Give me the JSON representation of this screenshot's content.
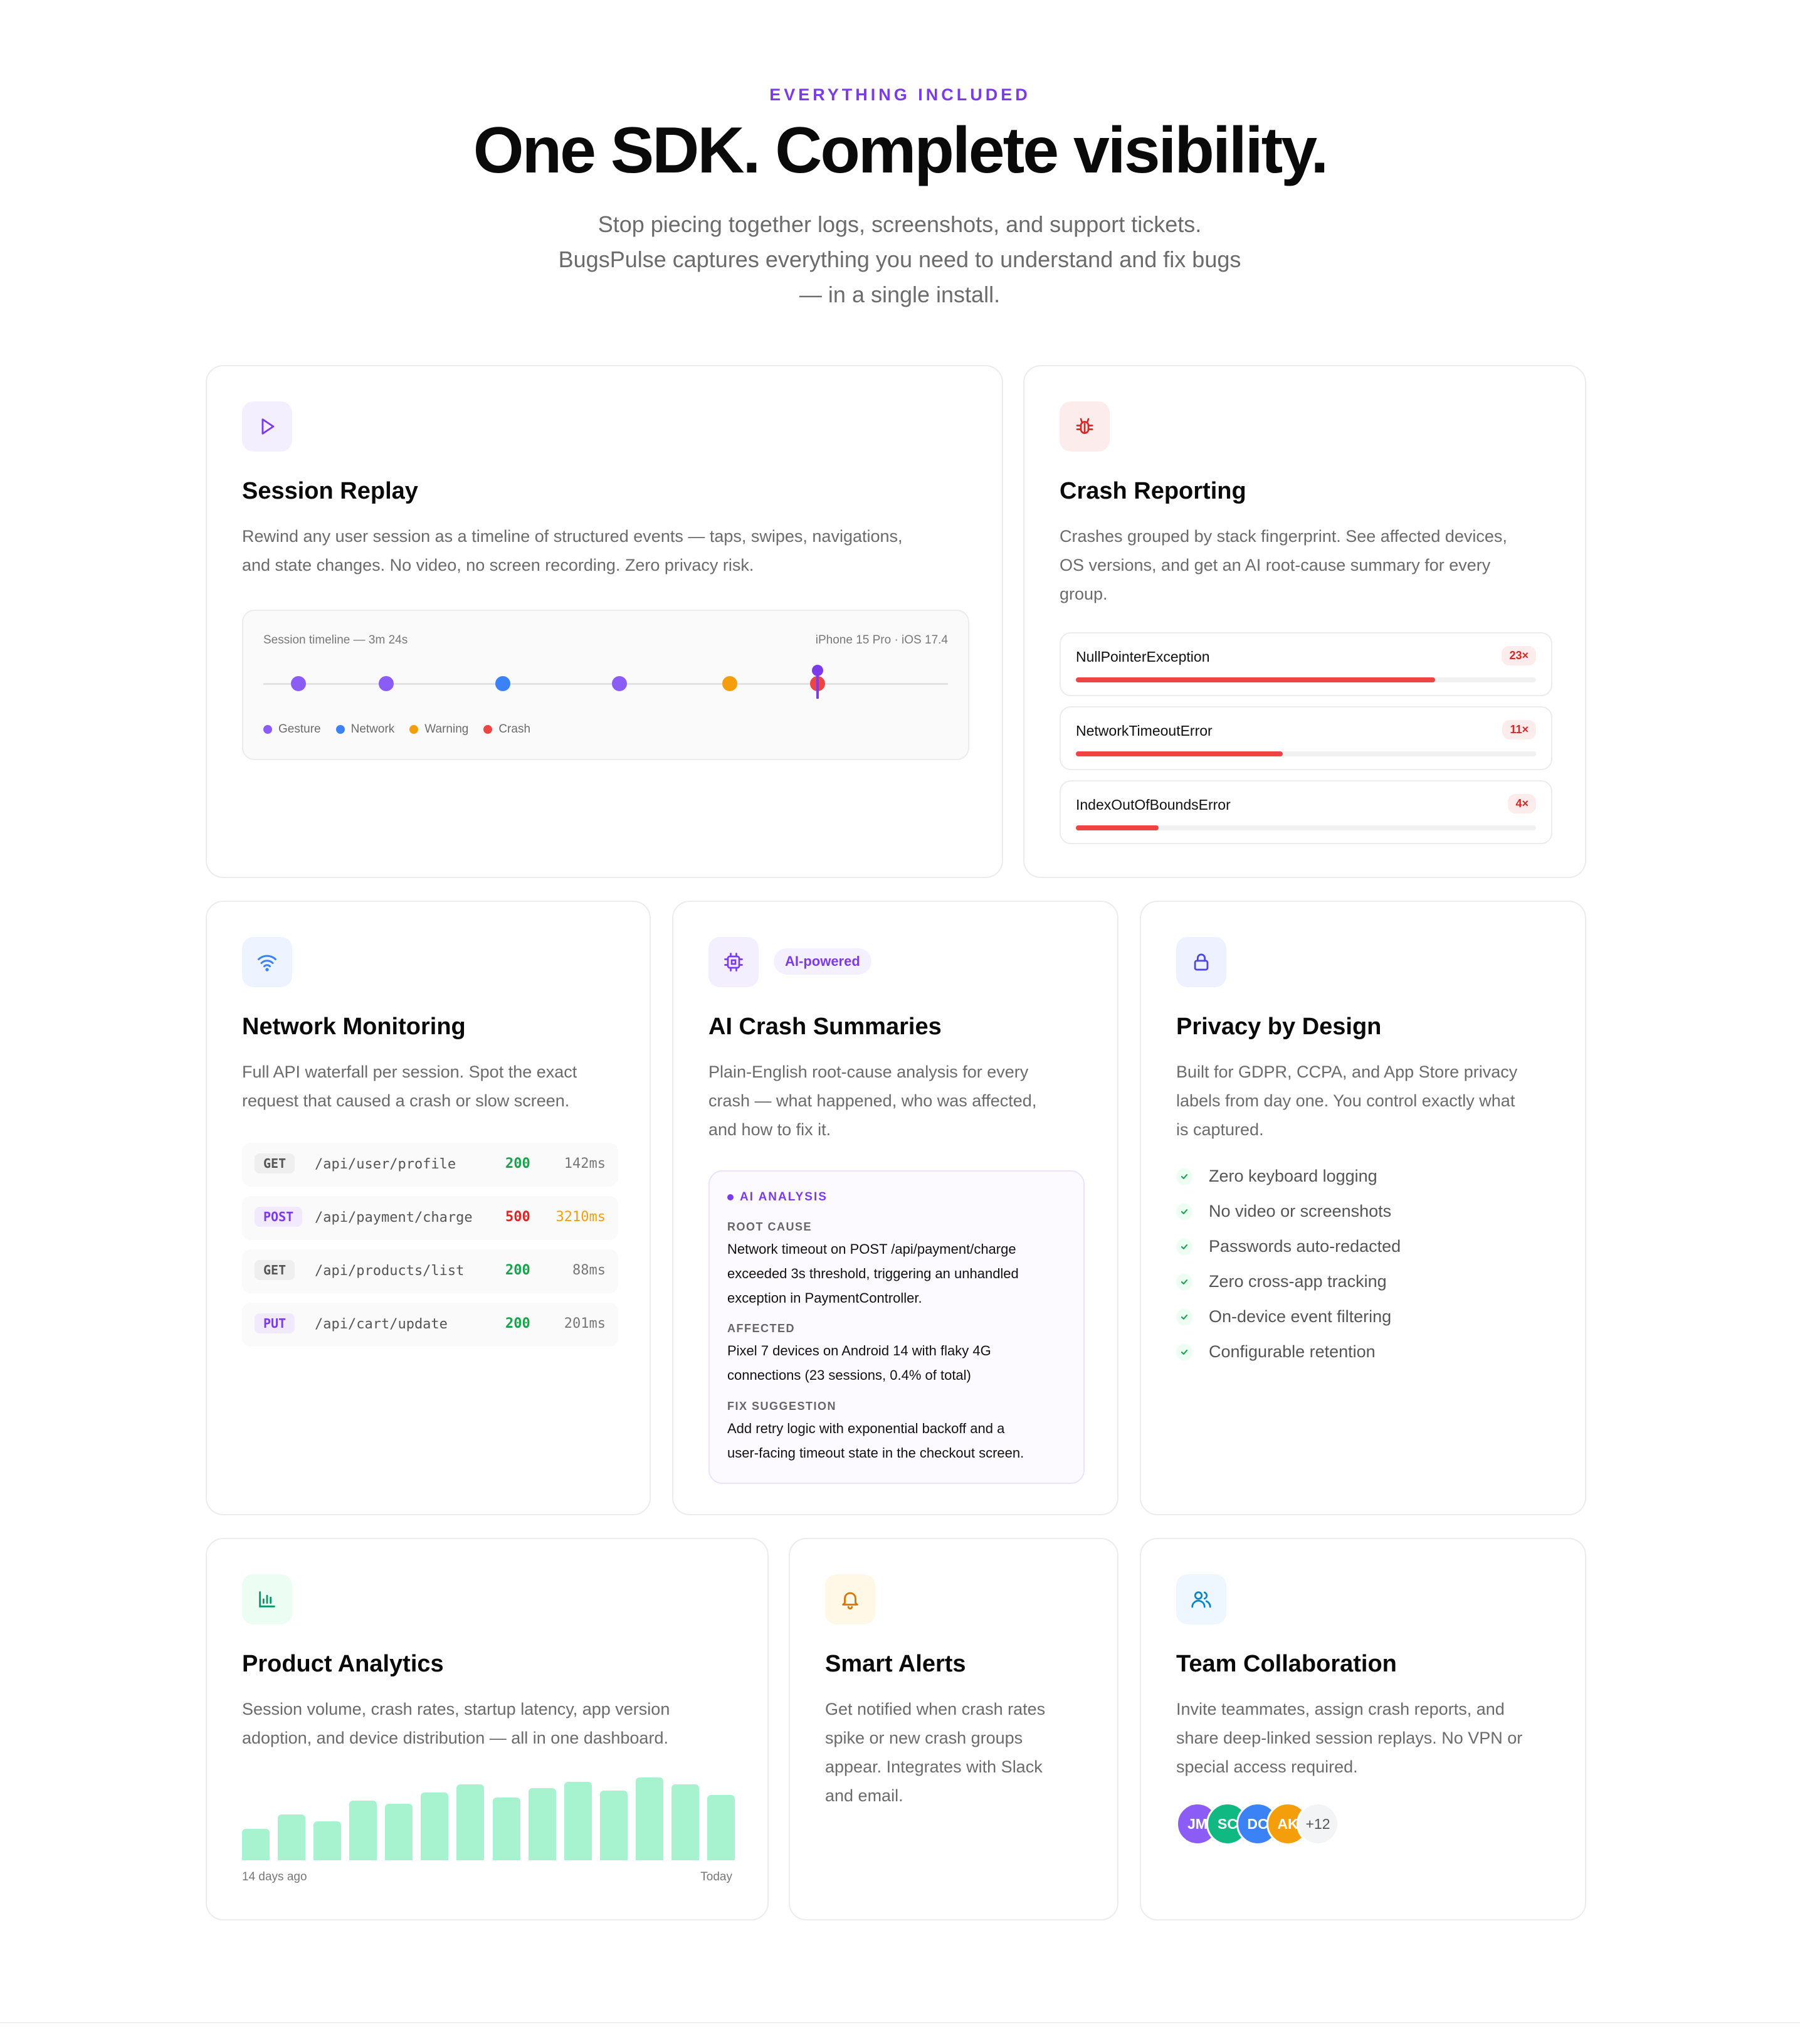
{
  "header": {
    "eyebrow": "EVERYTHING INCLUDED",
    "title": "One SDK. Complete visibility.",
    "subtitle_lines": [
      "Stop piecing together logs, screenshots, and support tickets.",
      "BugsPulse captures everything you need to understand and fix bugs",
      "— in a single install."
    ]
  },
  "colors": {
    "accent": "#7c3aed",
    "gesture": "#8b5cf6",
    "network": "#3b82f6",
    "warning": "#f59e0b",
    "crash": "#ef4444",
    "success": "#16a34a"
  },
  "session_replay": {
    "icon": "play-icon",
    "title": "Session Replay",
    "desc_lines": [
      "Rewind any user session as a timeline of structured events — taps, swipes, navigations,",
      "and state changes. No video, no screen recording. Zero privacy risk."
    ],
    "timeline_label": "Session timeline — 3m 24s",
    "device_label": "iPhone 15 Pro · iOS 17.4",
    "events": [
      "gesture",
      "gesture",
      "network",
      "gesture",
      "warning",
      "crash"
    ],
    "legend": [
      {
        "label": "Gesture",
        "type": "gesture"
      },
      {
        "label": "Network",
        "type": "network"
      },
      {
        "label": "Warning",
        "type": "warning"
      },
      {
        "label": "Crash",
        "type": "crash"
      }
    ]
  },
  "crash_reporting": {
    "icon": "bug-icon",
    "title": "Crash Reporting",
    "desc_lines": [
      "Crashes grouped by stack fingerprint. See affected devices,",
      "OS versions, and get an AI root-cause summary for every",
      "group."
    ],
    "groups": [
      {
        "name": "NullPointerException",
        "count": "23×",
        "share": 0.78
      },
      {
        "name": "NetworkTimeoutError",
        "count": "11×",
        "share": 0.45
      },
      {
        "name": "IndexOutOfBoundsError",
        "count": "4×",
        "share": 0.18
      }
    ]
  },
  "network_monitoring": {
    "icon": "wifi-icon",
    "title": "Network Monitoring",
    "desc_lines": [
      "Full API waterfall per session. Spot the exact",
      "request that caused a crash or slow screen."
    ],
    "requests": [
      {
        "method": "GET",
        "path": "/api/user/profile",
        "status": "200",
        "time": "142ms",
        "error": false
      },
      {
        "method": "POST",
        "path": "/api/payment/charge",
        "status": "500",
        "time": "3210ms",
        "error": true
      },
      {
        "method": "GET",
        "path": "/api/products/list",
        "status": "200",
        "time": "88ms",
        "error": false
      },
      {
        "method": "PUT",
        "path": "/api/cart/update",
        "status": "200",
        "time": "201ms",
        "error": false
      }
    ]
  },
  "ai_summaries": {
    "icon": "cpu-icon",
    "badge": "AI-powered",
    "title": "AI Crash Summaries",
    "desc_lines": [
      "Plain-English root-cause analysis for every",
      "crash — what happened, who was affected,",
      "and how to fix it."
    ],
    "analysis": {
      "header": "AI ANALYSIS",
      "root_cause_label": "ROOT CAUSE",
      "root_cause_lines": [
        "Network timeout on POST /api/payment/charge",
        "exceeded 3s threshold, triggering an unhandled",
        "exception in PaymentController."
      ],
      "affected_label": "AFFECTED",
      "affected_lines": [
        "Pixel 7 devices on Android 14 with flaky 4G",
        "connections (23 sessions, 0.4% of total)"
      ],
      "fix_label": "FIX SUGGESTION",
      "fix_lines": [
        "Add retry logic with exponential backoff and a",
        "user-facing timeout state in the checkout screen."
      ]
    }
  },
  "privacy": {
    "icon": "lock-icon",
    "title": "Privacy by Design",
    "desc_lines": [
      "Built for GDPR, CCPA, and App Store privacy",
      "labels from day one. You control exactly what",
      "is captured."
    ],
    "items": [
      "Zero keyboard logging",
      "No video or screenshots",
      "Passwords auto-redacted",
      "Zero cross-app tracking",
      "On-device event filtering",
      "Configurable retention"
    ]
  },
  "analytics": {
    "icon": "bar-chart-icon",
    "title": "Product Analytics",
    "desc_lines": [
      "Session volume, crash rates, startup latency, app version",
      "adoption, and device distribution — all in one dashboard."
    ],
    "range_start": "14 days ago",
    "range_end": "Today"
  },
  "chart_data": {
    "type": "bar",
    "categories": [
      "1",
      "2",
      "3",
      "4",
      "5",
      "6",
      "7",
      "8",
      "9",
      "10",
      "11",
      "12",
      "13",
      "14"
    ],
    "values": [
      0.38,
      0.55,
      0.47,
      0.72,
      0.68,
      0.82,
      0.92,
      0.76,
      0.87,
      0.95,
      0.84,
      1.0,
      0.92,
      0.79
    ],
    "xlabel": "",
    "ylabel": "",
    "ylim": [
      0,
      1
    ]
  },
  "alerts": {
    "icon": "bell-icon",
    "title": "Smart Alerts",
    "desc_lines": [
      "Get notified when crash rates",
      "spike or new crash groups",
      "appear. Integrates with Slack",
      "and email."
    ]
  },
  "team": {
    "icon": "users-icon",
    "title": "Team Collaboration",
    "desc_lines": [
      "Invite teammates, assign crash reports, and",
      "share deep-linked session replays. No VPN or",
      "special access required."
    ],
    "avatars": [
      {
        "initials": "JM",
        "color": "#8b5cf6"
      },
      {
        "initials": "SC",
        "color": "#10b981"
      },
      {
        "initials": "DC",
        "color": "#3b82f6"
      },
      {
        "initials": "AK",
        "color": "#f59e0b"
      }
    ],
    "more": "+12"
  }
}
